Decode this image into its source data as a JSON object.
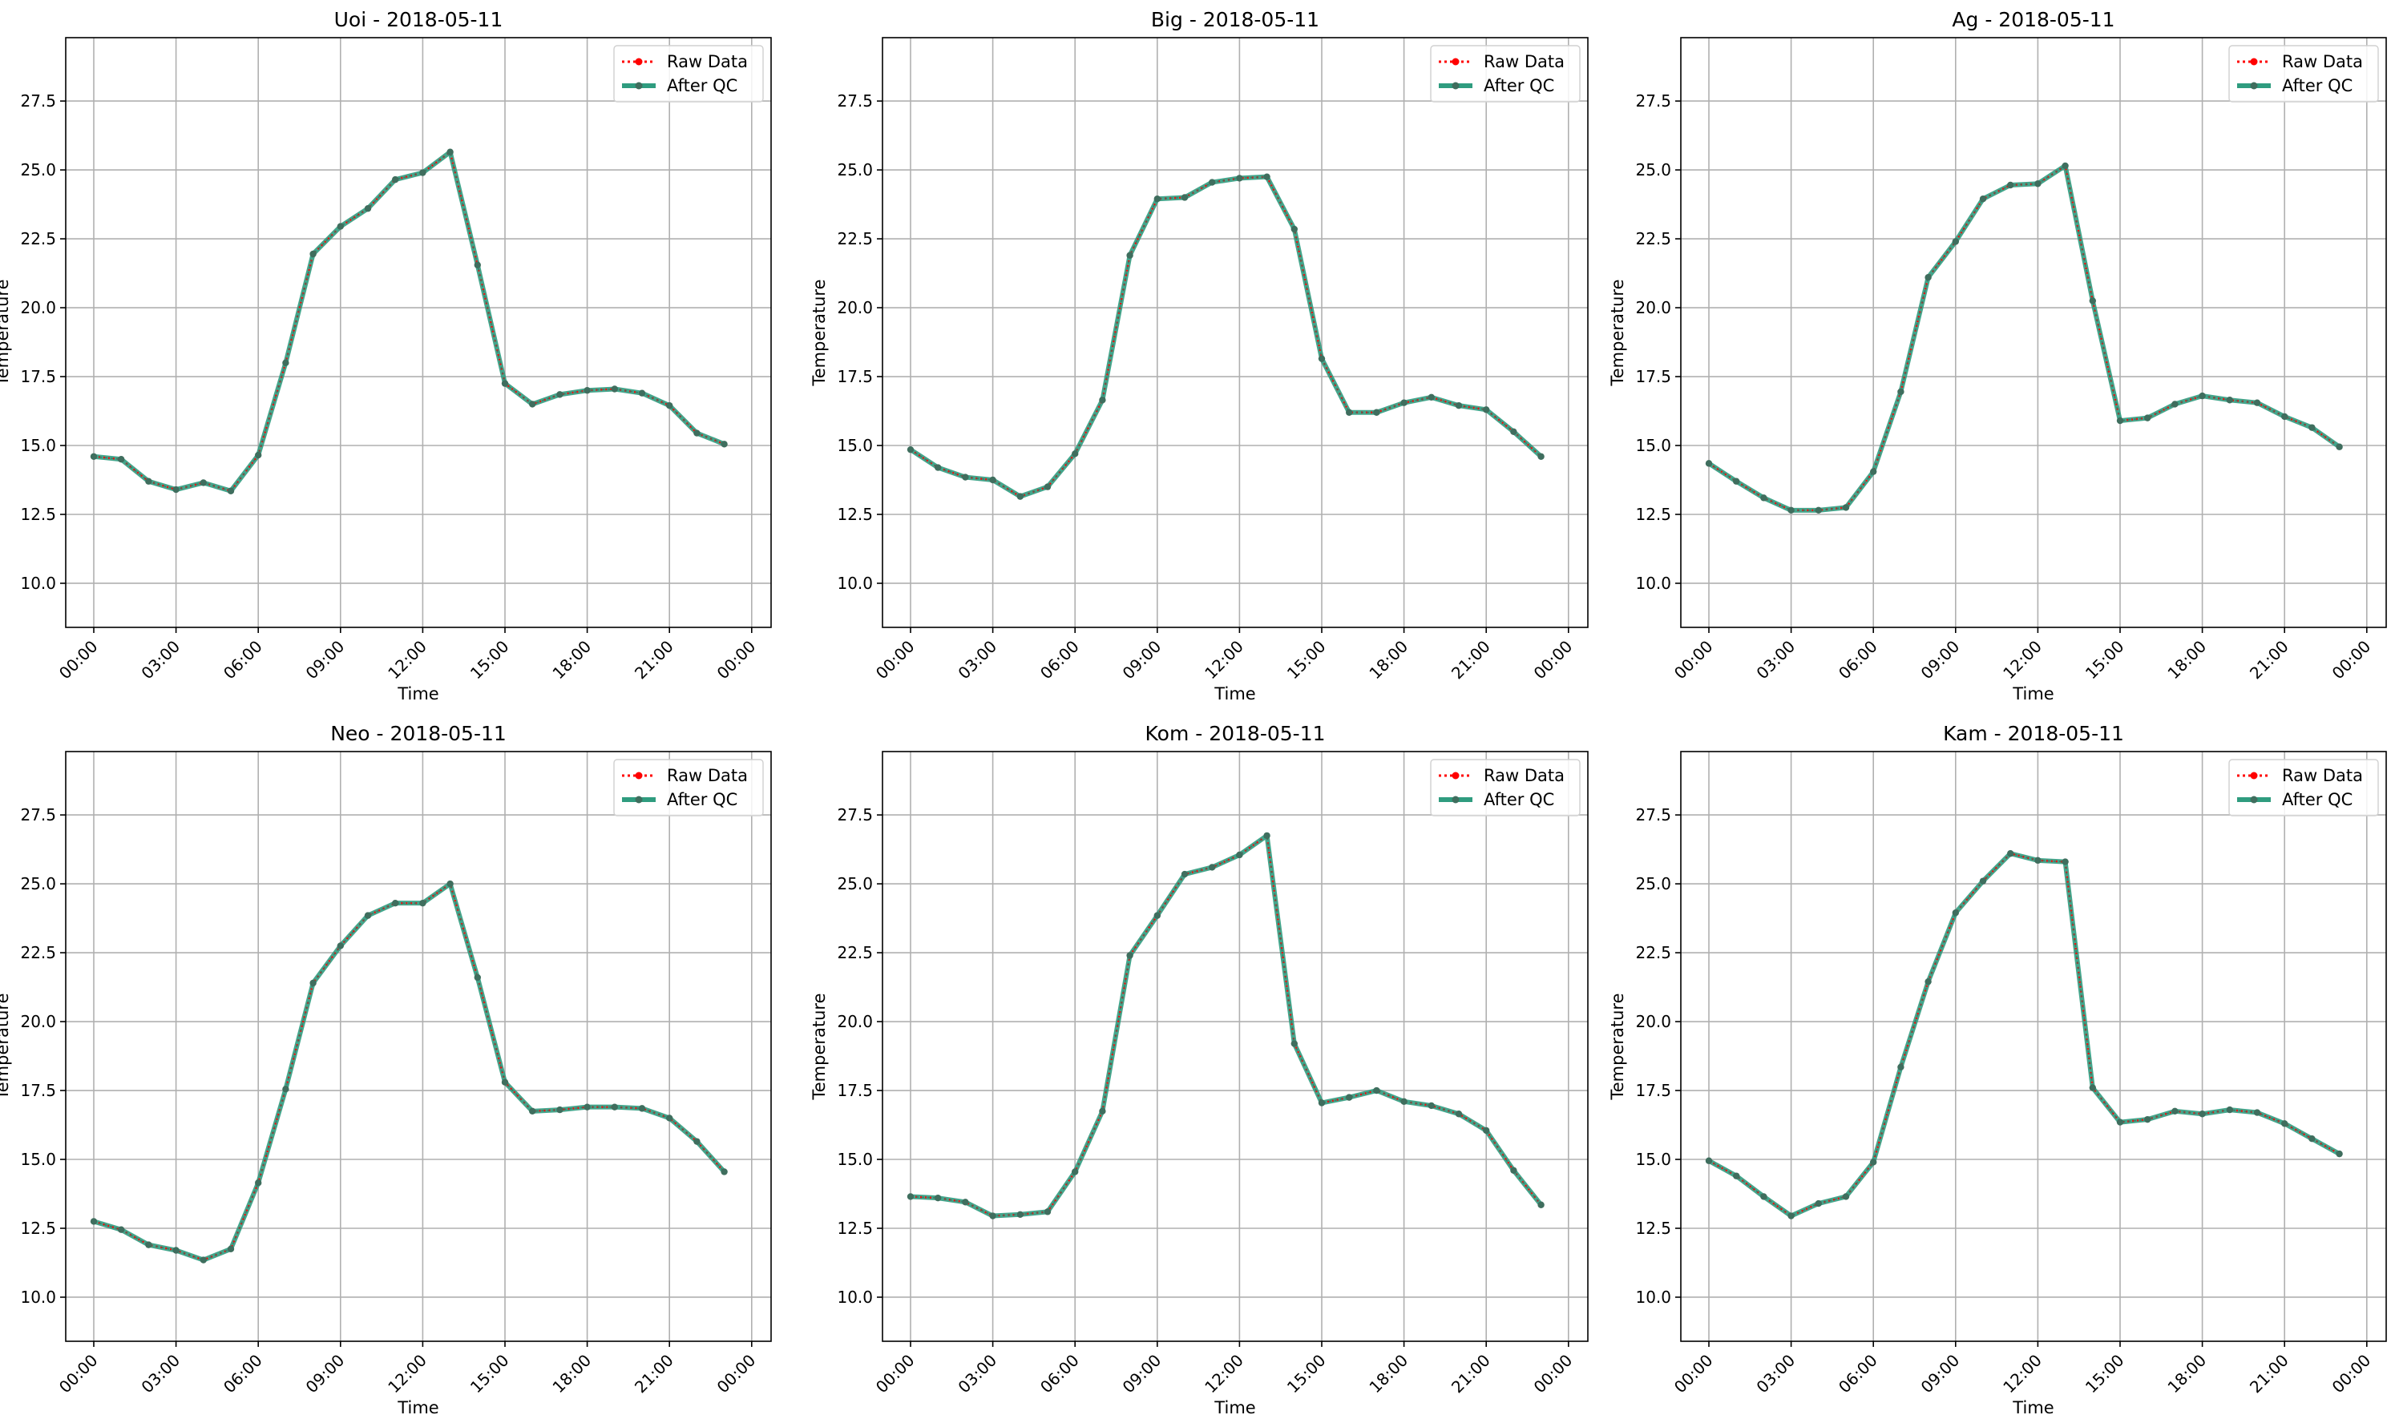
{
  "figure": {
    "xlabel": "Time",
    "ylabel": "Temperature",
    "legend": {
      "raw_label": "Raw Data",
      "qc_label": "After QC",
      "placement": "top-right"
    }
  },
  "colors": {
    "raw": "#ff0000",
    "qc": "#2f9c7f",
    "qc_marker": "#3f6e5e",
    "grid": "#b0b0b0",
    "axes": "#000000"
  },
  "chart_data": [
    {
      "type": "line",
      "title": "Uoi - 2018-05-11",
      "xlabel": "Time",
      "ylabel": "Temperature",
      "ylim": [
        8.4,
        29.8
      ],
      "yticks": [
        "10.0",
        "12.5",
        "15.0",
        "17.5",
        "20.0",
        "22.5",
        "25.0",
        "27.5"
      ],
      "xticks": [
        "00:00",
        "03:00",
        "06:00",
        "09:00",
        "12:00",
        "15:00",
        "18:00",
        "21:00",
        "00:00"
      ],
      "x": [
        "00:00",
        "01:00",
        "02:00",
        "03:00",
        "04:00",
        "05:00",
        "06:00",
        "07:00",
        "08:00",
        "09:00",
        "10:00",
        "11:00",
        "12:00",
        "13:00",
        "14:00",
        "15:00",
        "16:00",
        "17:00",
        "18:00",
        "19:00",
        "20:00",
        "21:00",
        "22:00",
        "23:00"
      ],
      "grid": true,
      "series": [
        {
          "name": "Raw Data",
          "values": [
            14.6,
            14.5,
            13.7,
            13.4,
            13.65,
            13.35,
            14.65,
            18.0,
            21.95,
            22.95,
            23.6,
            24.65,
            24.9,
            25.65,
            21.55,
            17.25,
            16.5,
            16.85,
            17.0,
            17.05,
            16.9,
            16.45,
            15.45,
            15.05
          ]
        },
        {
          "name": "After QC",
          "values": [
            14.6,
            14.5,
            13.7,
            13.4,
            13.65,
            13.35,
            14.65,
            18.0,
            21.95,
            22.95,
            23.6,
            24.65,
            24.9,
            25.65,
            21.55,
            17.25,
            16.5,
            16.85,
            17.0,
            17.05,
            16.9,
            16.45,
            15.45,
            15.05
          ]
        }
      ]
    },
    {
      "type": "line",
      "title": "Big - 2018-05-11",
      "xlabel": "Time",
      "ylabel": "Temperature",
      "ylim": [
        8.4,
        29.8
      ],
      "yticks": [
        "10.0",
        "12.5",
        "15.0",
        "17.5",
        "20.0",
        "22.5",
        "25.0",
        "27.5"
      ],
      "xticks": [
        "00:00",
        "03:00",
        "06:00",
        "09:00",
        "12:00",
        "15:00",
        "18:00",
        "21:00",
        "00:00"
      ],
      "x": [
        "00:00",
        "01:00",
        "02:00",
        "03:00",
        "04:00",
        "05:00",
        "06:00",
        "07:00",
        "08:00",
        "09:00",
        "10:00",
        "11:00",
        "12:00",
        "13:00",
        "14:00",
        "15:00",
        "16:00",
        "17:00",
        "18:00",
        "19:00",
        "20:00",
        "21:00",
        "22:00",
        "23:00"
      ],
      "grid": true,
      "series": [
        {
          "name": "Raw Data",
          "values": [
            14.85,
            14.2,
            13.85,
            13.75,
            13.15,
            13.5,
            14.7,
            16.65,
            21.9,
            23.95,
            24.0,
            24.55,
            24.7,
            24.75,
            22.85,
            18.15,
            16.2,
            16.2,
            16.55,
            16.75,
            16.45,
            16.3,
            15.5,
            14.6
          ]
        },
        {
          "name": "After QC",
          "values": [
            14.85,
            14.2,
            13.85,
            13.75,
            13.15,
            13.5,
            14.7,
            16.65,
            21.9,
            23.95,
            24.0,
            24.55,
            24.7,
            24.75,
            22.85,
            18.15,
            16.2,
            16.2,
            16.55,
            16.75,
            16.45,
            16.3,
            15.5,
            14.6
          ]
        }
      ]
    },
    {
      "type": "line",
      "title": "Ag - 2018-05-11",
      "xlabel": "Time",
      "ylabel": "Temperature",
      "ylim": [
        8.4,
        29.8
      ],
      "yticks": [
        "10.0",
        "12.5",
        "15.0",
        "17.5",
        "20.0",
        "22.5",
        "25.0",
        "27.5"
      ],
      "xticks": [
        "00:00",
        "03:00",
        "06:00",
        "09:00",
        "12:00",
        "15:00",
        "18:00",
        "21:00",
        "00:00"
      ],
      "x": [
        "00:00",
        "01:00",
        "02:00",
        "03:00",
        "04:00",
        "05:00",
        "06:00",
        "07:00",
        "08:00",
        "09:00",
        "10:00",
        "11:00",
        "12:00",
        "13:00",
        "14:00",
        "15:00",
        "16:00",
        "17:00",
        "18:00",
        "19:00",
        "20:00",
        "21:00",
        "22:00",
        "23:00"
      ],
      "grid": true,
      "series": [
        {
          "name": "Raw Data",
          "values": [
            14.35,
            13.7,
            13.1,
            12.65,
            12.65,
            12.75,
            14.05,
            16.95,
            21.1,
            22.4,
            23.95,
            24.45,
            24.5,
            25.15,
            20.25,
            15.9,
            16.0,
            16.5,
            16.8,
            16.65,
            16.55,
            16.05,
            15.65,
            14.95
          ]
        },
        {
          "name": "After QC",
          "values": [
            14.35,
            13.7,
            13.1,
            12.65,
            12.65,
            12.75,
            14.05,
            16.95,
            21.1,
            22.4,
            23.95,
            24.45,
            24.5,
            25.15,
            20.25,
            15.9,
            16.0,
            16.5,
            16.8,
            16.65,
            16.55,
            16.05,
            15.65,
            14.95
          ]
        }
      ]
    },
    {
      "type": "line",
      "title": "Neo - 2018-05-11",
      "xlabel": "Time",
      "ylabel": "Temperature",
      "ylim": [
        8.4,
        29.8
      ],
      "yticks": [
        "10.0",
        "12.5",
        "15.0",
        "17.5",
        "20.0",
        "22.5",
        "25.0",
        "27.5"
      ],
      "xticks": [
        "00:00",
        "03:00",
        "06:00",
        "09:00",
        "12:00",
        "15:00",
        "18:00",
        "21:00",
        "00:00"
      ],
      "x": [
        "00:00",
        "01:00",
        "02:00",
        "03:00",
        "04:00",
        "05:00",
        "06:00",
        "07:00",
        "08:00",
        "09:00",
        "10:00",
        "11:00",
        "12:00",
        "13:00",
        "14:00",
        "15:00",
        "16:00",
        "17:00",
        "18:00",
        "19:00",
        "20:00",
        "21:00",
        "22:00",
        "23:00"
      ],
      "grid": true,
      "series": [
        {
          "name": "Raw Data",
          "values": [
            12.75,
            12.45,
            11.9,
            11.7,
            11.35,
            11.75,
            14.15,
            17.55,
            21.4,
            22.75,
            23.85,
            24.3,
            24.3,
            25.0,
            21.6,
            17.8,
            16.75,
            16.8,
            16.9,
            16.9,
            16.85,
            16.5,
            15.65,
            14.55
          ]
        },
        {
          "name": "After QC",
          "values": [
            12.75,
            12.45,
            11.9,
            11.7,
            11.35,
            11.75,
            14.15,
            17.55,
            21.4,
            22.75,
            23.85,
            24.3,
            24.3,
            25.0,
            21.6,
            17.8,
            16.75,
            16.8,
            16.9,
            16.9,
            16.85,
            16.5,
            15.65,
            14.55
          ]
        }
      ]
    },
    {
      "type": "line",
      "title": "Kom - 2018-05-11",
      "xlabel": "Time",
      "ylabel": "Temperature",
      "ylim": [
        8.4,
        29.8
      ],
      "yticks": [
        "10.0",
        "12.5",
        "15.0",
        "17.5",
        "20.0",
        "22.5",
        "25.0",
        "27.5"
      ],
      "xticks": [
        "00:00",
        "03:00",
        "06:00",
        "09:00",
        "12:00",
        "15:00",
        "18:00",
        "21:00",
        "00:00"
      ],
      "x": [
        "00:00",
        "01:00",
        "02:00",
        "03:00",
        "04:00",
        "05:00",
        "06:00",
        "07:00",
        "08:00",
        "09:00",
        "10:00",
        "11:00",
        "12:00",
        "13:00",
        "14:00",
        "15:00",
        "16:00",
        "17:00",
        "18:00",
        "19:00",
        "20:00",
        "21:00",
        "22:00",
        "23:00"
      ],
      "grid": true,
      "series": [
        {
          "name": "Raw Data",
          "values": [
            13.65,
            13.6,
            13.45,
            12.95,
            13.0,
            13.1,
            14.55,
            16.75,
            22.4,
            23.85,
            25.35,
            25.6,
            26.05,
            26.75,
            19.2,
            17.05,
            17.25,
            17.5,
            17.1,
            16.95,
            16.65,
            16.05,
            14.6,
            13.35
          ]
        },
        {
          "name": "After QC",
          "values": [
            13.65,
            13.6,
            13.45,
            12.95,
            13.0,
            13.1,
            14.55,
            16.75,
            22.4,
            23.85,
            25.35,
            25.6,
            26.05,
            26.75,
            19.2,
            17.05,
            17.25,
            17.5,
            17.1,
            16.95,
            16.65,
            16.05,
            14.6,
            13.35
          ]
        }
      ]
    },
    {
      "type": "line",
      "title": "Kam - 2018-05-11",
      "xlabel": "Time",
      "ylabel": "Temperature",
      "ylim": [
        8.4,
        29.8
      ],
      "yticks": [
        "10.0",
        "12.5",
        "15.0",
        "17.5",
        "20.0",
        "22.5",
        "25.0",
        "27.5"
      ],
      "xticks": [
        "00:00",
        "03:00",
        "06:00",
        "09:00",
        "12:00",
        "15:00",
        "18:00",
        "21:00",
        "00:00"
      ],
      "x": [
        "00:00",
        "01:00",
        "02:00",
        "03:00",
        "04:00",
        "05:00",
        "06:00",
        "07:00",
        "08:00",
        "09:00",
        "10:00",
        "11:00",
        "12:00",
        "13:00",
        "14:00",
        "15:00",
        "16:00",
        "17:00",
        "18:00",
        "19:00",
        "20:00",
        "21:00",
        "22:00",
        "23:00"
      ],
      "grid": true,
      "series": [
        {
          "name": "Raw Data",
          "values": [
            14.95,
            14.4,
            13.65,
            12.95,
            13.4,
            13.65,
            14.9,
            18.35,
            21.45,
            23.95,
            25.1,
            26.1,
            25.85,
            25.8,
            17.6,
            16.35,
            16.45,
            16.75,
            16.65,
            16.8,
            16.7,
            16.3,
            15.75,
            15.2
          ]
        },
        {
          "name": "After QC",
          "values": [
            14.95,
            14.4,
            13.65,
            12.95,
            13.4,
            13.65,
            14.9,
            18.35,
            21.45,
            23.95,
            25.1,
            26.1,
            25.85,
            25.8,
            17.6,
            16.35,
            16.45,
            16.75,
            16.65,
            16.8,
            16.7,
            16.3,
            15.75,
            15.2
          ]
        }
      ]
    }
  ]
}
